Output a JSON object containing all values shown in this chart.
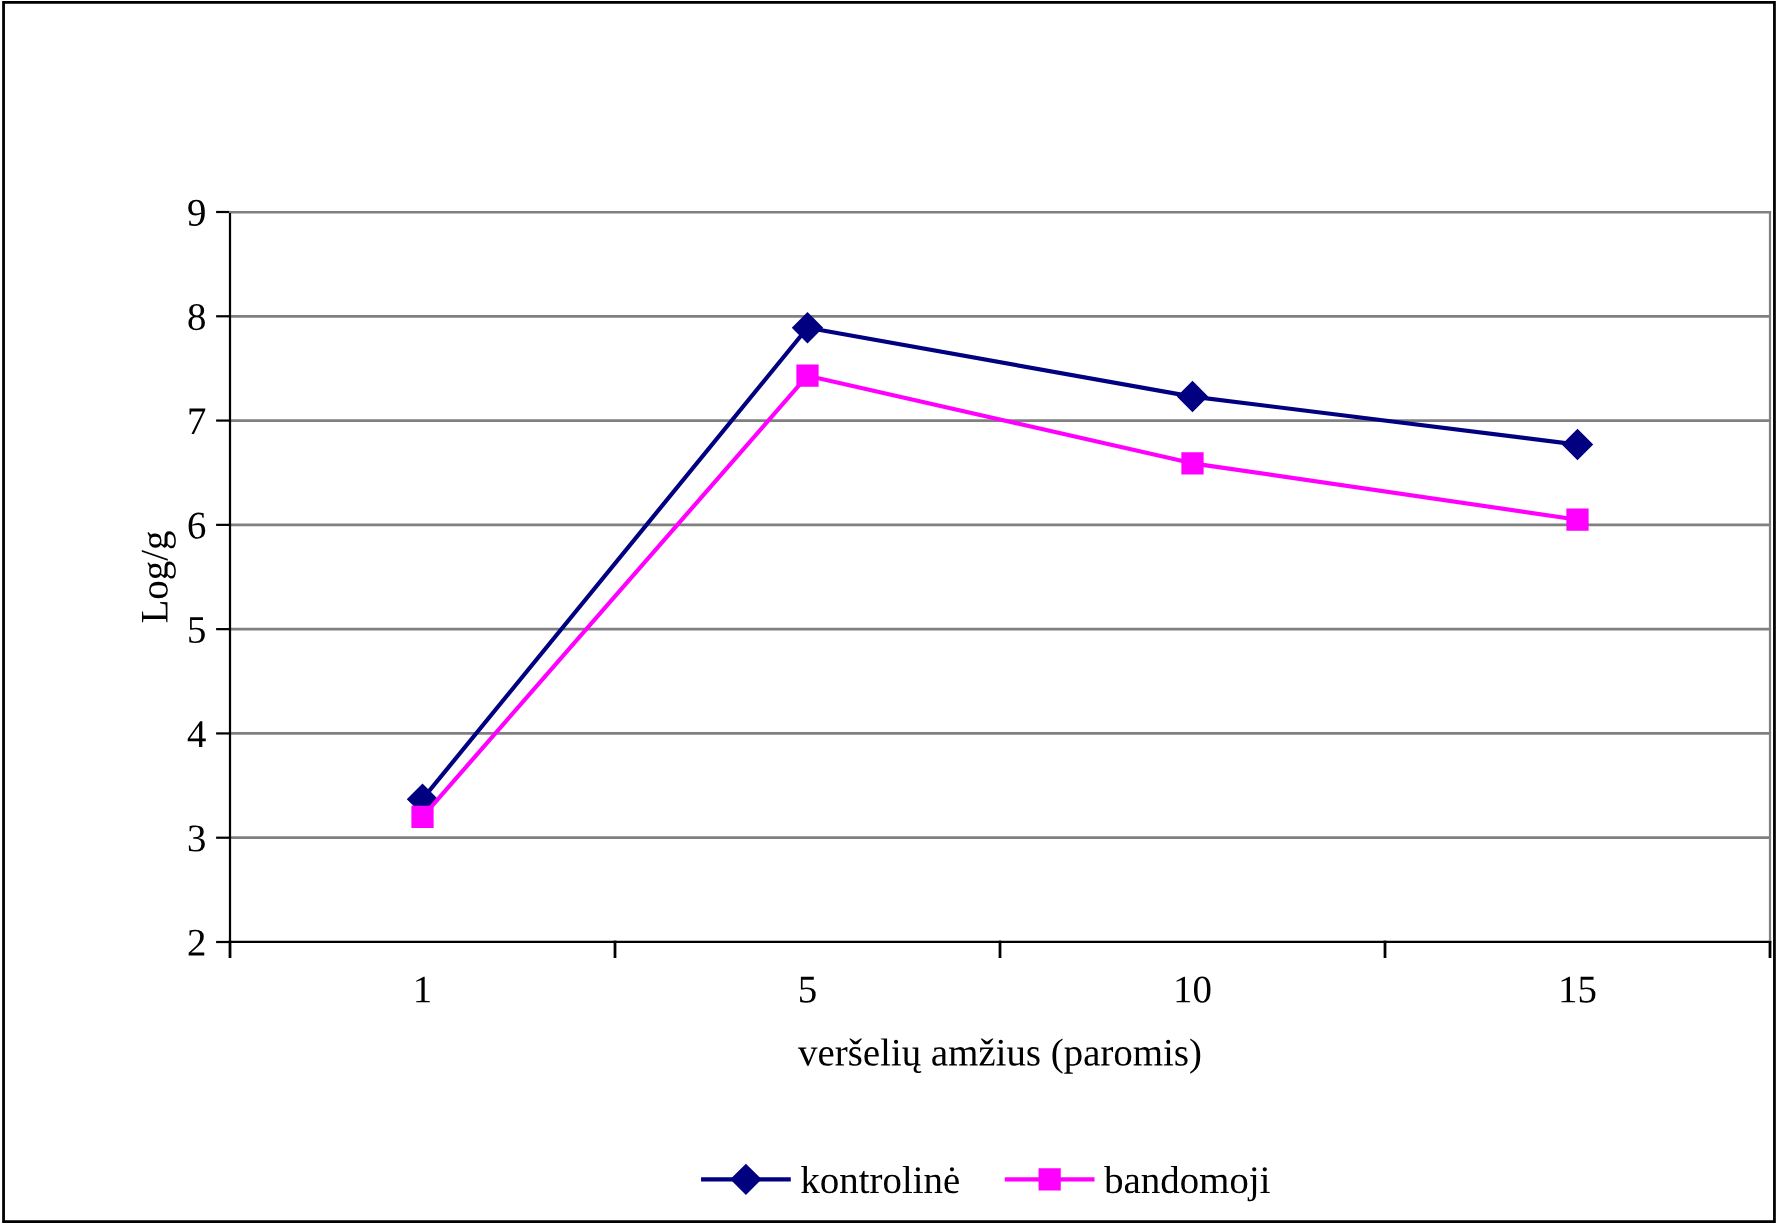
{
  "chart_data": {
    "type": "line",
    "xlabel": "veršelių amžius (paromis)",
    "ylabel": "Log/g",
    "categories": [
      "1",
      "5",
      "10",
      "15"
    ],
    "series": [
      {
        "name": "kontrolinė",
        "color": "#000080",
        "marker": "diamond",
        "values": [
          3.37,
          7.89,
          7.23,
          6.77
        ]
      },
      {
        "name": "bandomoji",
        "color": "#ff00ff",
        "marker": "square",
        "values": [
          3.2,
          7.43,
          6.59,
          6.05
        ]
      }
    ],
    "ylim": [
      2,
      9
    ],
    "yticks": [
      2,
      3,
      4,
      5,
      6,
      7,
      8,
      9
    ],
    "grid": "y",
    "legend": "bottom",
    "line_style": "solid"
  }
}
